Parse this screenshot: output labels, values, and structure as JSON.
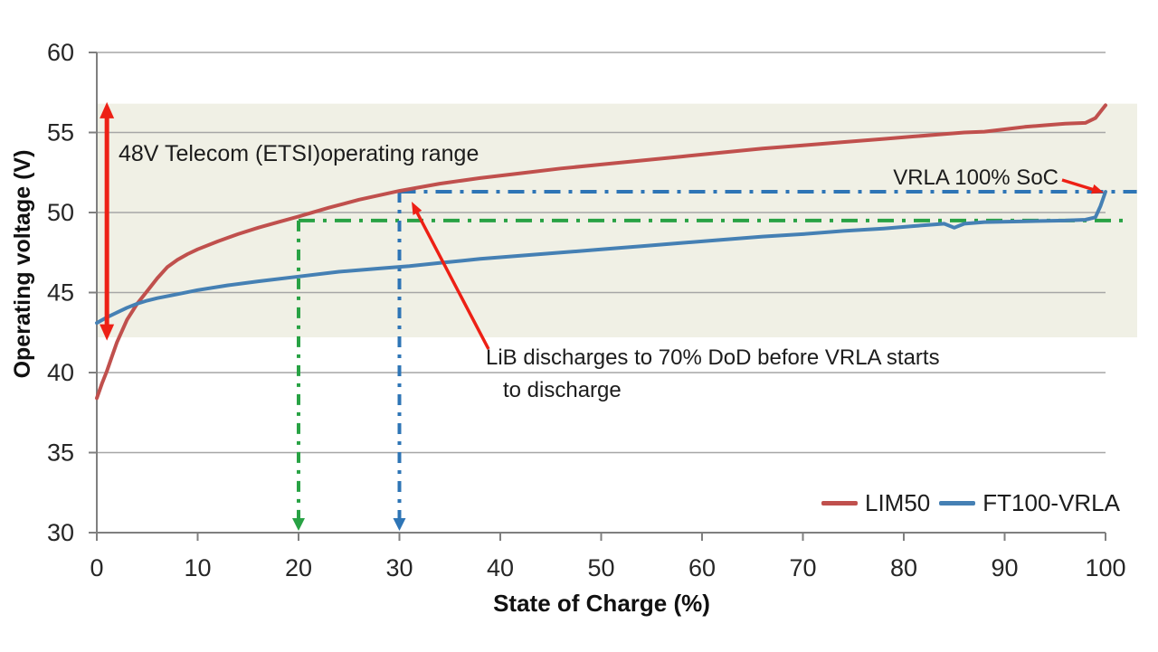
{
  "chart_data": {
    "type": "line",
    "title": "",
    "xlabel": "State of Charge (%)",
    "ylabel": "Operating voltage (V)",
    "xlim": [
      0,
      100
    ],
    "ylim": [
      30,
      60
    ],
    "x_ticks": [
      0,
      10,
      20,
      30,
      40,
      50,
      60,
      70,
      80,
      90,
      100
    ],
    "y_ticks": [
      30,
      35,
      40,
      45,
      50,
      55,
      60
    ],
    "grid": "horizontal",
    "legend_position": "bottom-right",
    "series": [
      {
        "name": "LIM50",
        "color": "#C0504D",
        "points": [
          [
            0,
            38.4
          ],
          [
            0.5,
            39.3
          ],
          [
            1,
            40.1
          ],
          [
            1.5,
            41.0
          ],
          [
            2,
            41.9
          ],
          [
            3,
            43.3
          ],
          [
            4,
            44.3
          ],
          [
            5,
            45.1
          ],
          [
            6,
            45.9
          ],
          [
            7,
            46.6
          ],
          [
            8,
            47.05
          ],
          [
            9,
            47.4
          ],
          [
            10,
            47.7
          ],
          [
            12,
            48.2
          ],
          [
            14,
            48.65
          ],
          [
            16,
            49.05
          ],
          [
            18,
            49.4
          ],
          [
            20,
            49.75
          ],
          [
            23,
            50.3
          ],
          [
            26,
            50.8
          ],
          [
            30,
            51.35
          ],
          [
            34,
            51.8
          ],
          [
            38,
            52.15
          ],
          [
            42,
            52.45
          ],
          [
            46,
            52.75
          ],
          [
            50,
            53.0
          ],
          [
            54,
            53.25
          ],
          [
            58,
            53.5
          ],
          [
            62,
            53.75
          ],
          [
            66,
            54.0
          ],
          [
            70,
            54.2
          ],
          [
            74,
            54.4
          ],
          [
            78,
            54.6
          ],
          [
            81,
            54.75
          ],
          [
            84,
            54.9
          ],
          [
            86,
            55.0
          ],
          [
            88,
            55.05
          ],
          [
            90,
            55.2
          ],
          [
            92,
            55.35
          ],
          [
            94,
            55.45
          ],
          [
            96,
            55.55
          ],
          [
            98,
            55.6
          ],
          [
            99,
            55.9
          ],
          [
            100,
            56.7
          ]
        ]
      },
      {
        "name": "FT100-VRLA",
        "color": "#4580B4",
        "points": [
          [
            0,
            43.1
          ],
          [
            1,
            43.45
          ],
          [
            2,
            43.75
          ],
          [
            3,
            44.05
          ],
          [
            4,
            44.3
          ],
          [
            5,
            44.5
          ],
          [
            6,
            44.65
          ],
          [
            8,
            44.9
          ],
          [
            10,
            45.15
          ],
          [
            13,
            45.45
          ],
          [
            16,
            45.7
          ],
          [
            20,
            46.0
          ],
          [
            24,
            46.3
          ],
          [
            28,
            46.5
          ],
          [
            31,
            46.65
          ],
          [
            34,
            46.85
          ],
          [
            38,
            47.1
          ],
          [
            42,
            47.3
          ],
          [
            46,
            47.5
          ],
          [
            50,
            47.7
          ],
          [
            54,
            47.9
          ],
          [
            58,
            48.1
          ],
          [
            62,
            48.3
          ],
          [
            66,
            48.5
          ],
          [
            70,
            48.65
          ],
          [
            74,
            48.85
          ],
          [
            78,
            49.0
          ],
          [
            81,
            49.15
          ],
          [
            83,
            49.25
          ],
          [
            84,
            49.3
          ],
          [
            85,
            49.05
          ],
          [
            86,
            49.3
          ],
          [
            88,
            49.4
          ],
          [
            92,
            49.45
          ],
          [
            96,
            49.5
          ],
          [
            98,
            49.55
          ],
          [
            99,
            49.7
          ],
          [
            99.5,
            50.4
          ],
          [
            100,
            51.3
          ]
        ]
      }
    ],
    "reference_lines": [
      {
        "name": "vrla-100-soc-line",
        "voltage": 51.3,
        "soc_start": 30,
        "soc_end": 103.1,
        "color": "#2E75B6",
        "style": "dash-dot"
      },
      {
        "name": "lib-70-dod-line",
        "voltage": 49.5,
        "soc_start": 20,
        "soc_end": 102.3,
        "color": "#28A244",
        "style": "dash-dot"
      }
    ],
    "drop_arrows": [
      {
        "name": "lib-dod-drop-arrow",
        "soc": 20,
        "from_voltage": 49.5,
        "color": "#28A244"
      },
      {
        "name": "vrla-soc-drop-arrow",
        "soc": 30,
        "from_voltage": 51.3,
        "color": "#2E75B6"
      }
    ],
    "range_band": {
      "v_low": 42.2,
      "v_high": 56.8,
      "fill": "#F0F0E5",
      "arrow": {
        "soc": 1,
        "v_top": 56.9,
        "v_bottom": 42.0,
        "color": "#ED2015"
      }
    },
    "annotations": {
      "etsi": {
        "text": "48V Telecom (ETSI)operating range"
      },
      "lib": {
        "line1": "LiB discharges to 70% DoD before VRLA starts",
        "line2": "to discharge"
      },
      "vrla": {
        "text": "VRLA 100% SoC"
      }
    }
  },
  "colors": {
    "background": "#ffffff",
    "gridline": "#A6A6A6",
    "axis": "#7F7F7F",
    "tick_text": "#262626",
    "annotation_text": "#1c1c1c",
    "callout_arrow": "#ED2015"
  }
}
